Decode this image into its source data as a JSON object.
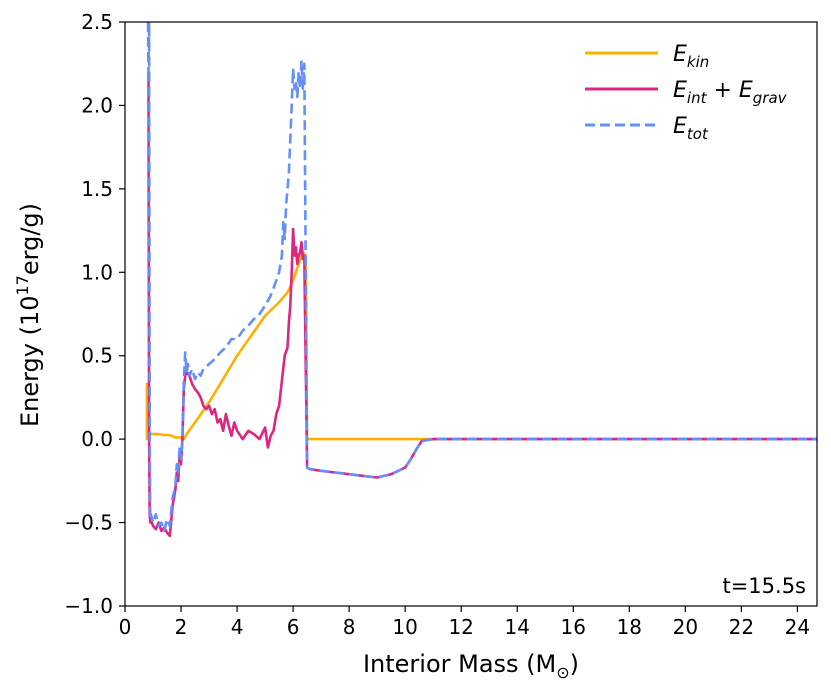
{
  "chart_data": {
    "type": "line",
    "title": "",
    "xlabel": "Interior Mass (M",
    "xlabel_sub": "⊙",
    "xlabel_end": ")",
    "ylabel": "Energy (10",
    "ylabel_sup": "17",
    "ylabel_end": "erg/g)",
    "xlim": [
      0,
      24.7
    ],
    "ylim": [
      -1.0,
      2.5
    ],
    "xticks": [
      0,
      2,
      4,
      6,
      8,
      10,
      12,
      14,
      16,
      18,
      20,
      22,
      24
    ],
    "xtick_labels": [
      "0",
      "2",
      "4",
      "6",
      "8",
      "10",
      "12",
      "14",
      "16",
      "18",
      "20",
      "22",
      "24"
    ],
    "yticks": [
      -1.0,
      -0.5,
      0.0,
      0.5,
      1.0,
      1.5,
      2.0,
      2.5
    ],
    "ytick_labels": [
      "−1.0",
      "−0.5",
      "0.0",
      "0.5",
      "1.0",
      "1.5",
      "2.0",
      "2.5"
    ],
    "legend_position": "top-right",
    "annotation": "t=15.5s",
    "series": [
      {
        "name": "E_kin",
        "legend_main": "E",
        "legend_sub": "kin",
        "color": "#FFB000",
        "dash": "solid",
        "x": [
          0.75,
          0.78,
          0.78,
          0.81,
          0.83,
          0.9,
          1.0,
          1.2,
          1.4,
          1.6,
          1.8,
          2.0,
          2.1,
          2.2,
          2.5,
          3.0,
          3.5,
          4.0,
          4.5,
          5.0,
          5.5,
          5.8,
          6.0,
          6.2,
          6.35,
          6.45,
          6.5,
          7.0,
          8.0,
          10.0,
          12.0,
          14.0,
          16.0,
          18.0,
          20.0,
          22.0,
          24.0,
          24.7
        ],
        "y": [
          0.0,
          0.0,
          0.33,
          0.33,
          0.03,
          0.03,
          0.03,
          0.03,
          0.025,
          0.025,
          0.01,
          0.01,
          0.0,
          0.03,
          0.1,
          0.22,
          0.36,
          0.5,
          0.62,
          0.74,
          0.82,
          0.88,
          0.95,
          1.05,
          1.12,
          1.1,
          0.0,
          0.0,
          0.0,
          0.0,
          0.0,
          0.0,
          0.0,
          0.0,
          0.0,
          0.0,
          0.0,
          0.0
        ]
      },
      {
        "name": "E_int + E_grav",
        "legend_main": "E",
        "legend_sub": "int",
        "legend_plus": " + ",
        "legend_main2": "E",
        "legend_sub2": "grav",
        "color": "#DC267F",
        "dash": "solid",
        "x": [
          0.82,
          0.84,
          0.85,
          0.86,
          0.88,
          0.9,
          0.92,
          1.0,
          1.1,
          1.2,
          1.3,
          1.4,
          1.5,
          1.6,
          1.7,
          1.8,
          1.85,
          1.9,
          1.95,
          2.0,
          2.05,
          2.1,
          2.15,
          2.2,
          2.3,
          2.4,
          2.5,
          2.6,
          2.7,
          2.8,
          2.9,
          3.0,
          3.1,
          3.2,
          3.3,
          3.4,
          3.5,
          3.6,
          3.7,
          3.8,
          3.9,
          4.0,
          4.2,
          4.4,
          4.6,
          4.8,
          5.0,
          5.1,
          5.2,
          5.3,
          5.4,
          5.5,
          5.6,
          5.7,
          5.8,
          5.85,
          5.9,
          5.95,
          6.0,
          6.05,
          6.1,
          6.15,
          6.2,
          6.25,
          6.3,
          6.35,
          6.4,
          6.5,
          6.6,
          7.0,
          7.5,
          8.0,
          8.5,
          9.0,
          9.5,
          10.0,
          10.2,
          10.4,
          10.6,
          11.0,
          12.0,
          14.0,
          16.0,
          18.0,
          20.0,
          22.0,
          24.0,
          24.7
        ],
        "y": [
          2.2,
          2.2,
          1.0,
          0.0,
          -0.45,
          -0.5,
          -0.48,
          -0.52,
          -0.54,
          -0.5,
          -0.55,
          -0.53,
          -0.56,
          -0.58,
          -0.4,
          -0.3,
          -0.2,
          -0.25,
          -0.1,
          -0.15,
          0.0,
          0.3,
          0.38,
          0.4,
          0.38,
          0.33,
          0.3,
          0.28,
          0.25,
          0.2,
          0.18,
          0.2,
          0.15,
          0.18,
          0.1,
          0.12,
          0.05,
          0.15,
          0.08,
          0.02,
          0.1,
          0.05,
          0.0,
          0.05,
          0.03,
          0.0,
          0.07,
          -0.05,
          0.02,
          0.05,
          0.15,
          0.2,
          0.35,
          0.5,
          0.55,
          0.7,
          0.8,
          1.0,
          1.26,
          1.1,
          1.15,
          1.05,
          1.1,
          1.12,
          1.18,
          1.08,
          1.1,
          -0.17,
          -0.18,
          -0.19,
          -0.2,
          -0.21,
          -0.22,
          -0.23,
          -0.21,
          -0.17,
          -0.12,
          -0.06,
          -0.01,
          0.0,
          0.0,
          0.0,
          0.0,
          0.0,
          0.0,
          0.0,
          0.0,
          0.0
        ]
      },
      {
        "name": "E_tot",
        "legend_main": "E",
        "legend_sub": "tot",
        "color": "#648FFF",
        "dash": "dashed",
        "x": [
          0.82,
          0.84,
          0.86,
          0.88,
          0.9,
          0.92,
          1.0,
          1.1,
          1.2,
          1.3,
          1.4,
          1.5,
          1.6,
          1.7,
          1.8,
          1.85,
          1.9,
          1.95,
          2.0,
          2.05,
          2.1,
          2.15,
          2.2,
          2.25,
          2.3,
          2.4,
          2.5,
          2.6,
          2.7,
          2.8,
          3.0,
          3.2,
          3.4,
          3.6,
          3.8,
          4.0,
          4.2,
          4.4,
          4.6,
          4.8,
          5.0,
          5.2,
          5.4,
          5.5,
          5.6,
          5.65,
          5.7,
          5.75,
          5.8,
          5.85,
          5.9,
          5.95,
          6.0,
          6.05,
          6.1,
          6.15,
          6.2,
          6.25,
          6.3,
          6.35,
          6.4,
          6.5,
          6.6,
          7.0,
          7.5,
          8.0,
          8.5,
          9.0,
          9.5,
          10.0,
          10.2,
          10.4,
          10.6,
          11.0,
          12.0,
          14.0,
          16.0,
          18.0,
          20.0,
          22.0,
          24.0,
          24.7
        ],
        "y": [
          2.5,
          2.2,
          2.5,
          0.0,
          -0.48,
          -0.45,
          -0.5,
          -0.45,
          -0.52,
          -0.5,
          -0.55,
          -0.48,
          -0.52,
          -0.35,
          -0.28,
          -0.15,
          -0.2,
          -0.05,
          -0.12,
          0.0,
          0.35,
          0.52,
          0.4,
          0.45,
          0.38,
          0.42,
          0.36,
          0.4,
          0.38,
          0.42,
          0.45,
          0.48,
          0.52,
          0.55,
          0.6,
          0.6,
          0.65,
          0.68,
          0.72,
          0.75,
          0.8,
          0.86,
          0.95,
          1.0,
          1.1,
          1.3,
          1.2,
          1.4,
          1.5,
          1.6,
          1.8,
          2.0,
          2.22,
          2.1,
          2.15,
          2.05,
          2.2,
          2.1,
          2.27,
          2.1,
          2.25,
          -0.17,
          -0.18,
          -0.19,
          -0.2,
          -0.21,
          -0.22,
          -0.23,
          -0.21,
          -0.17,
          -0.12,
          -0.06,
          -0.01,
          0.0,
          0.0,
          0.0,
          0.0,
          0.0,
          0.0,
          0.0,
          0.0,
          0.0
        ]
      }
    ]
  }
}
